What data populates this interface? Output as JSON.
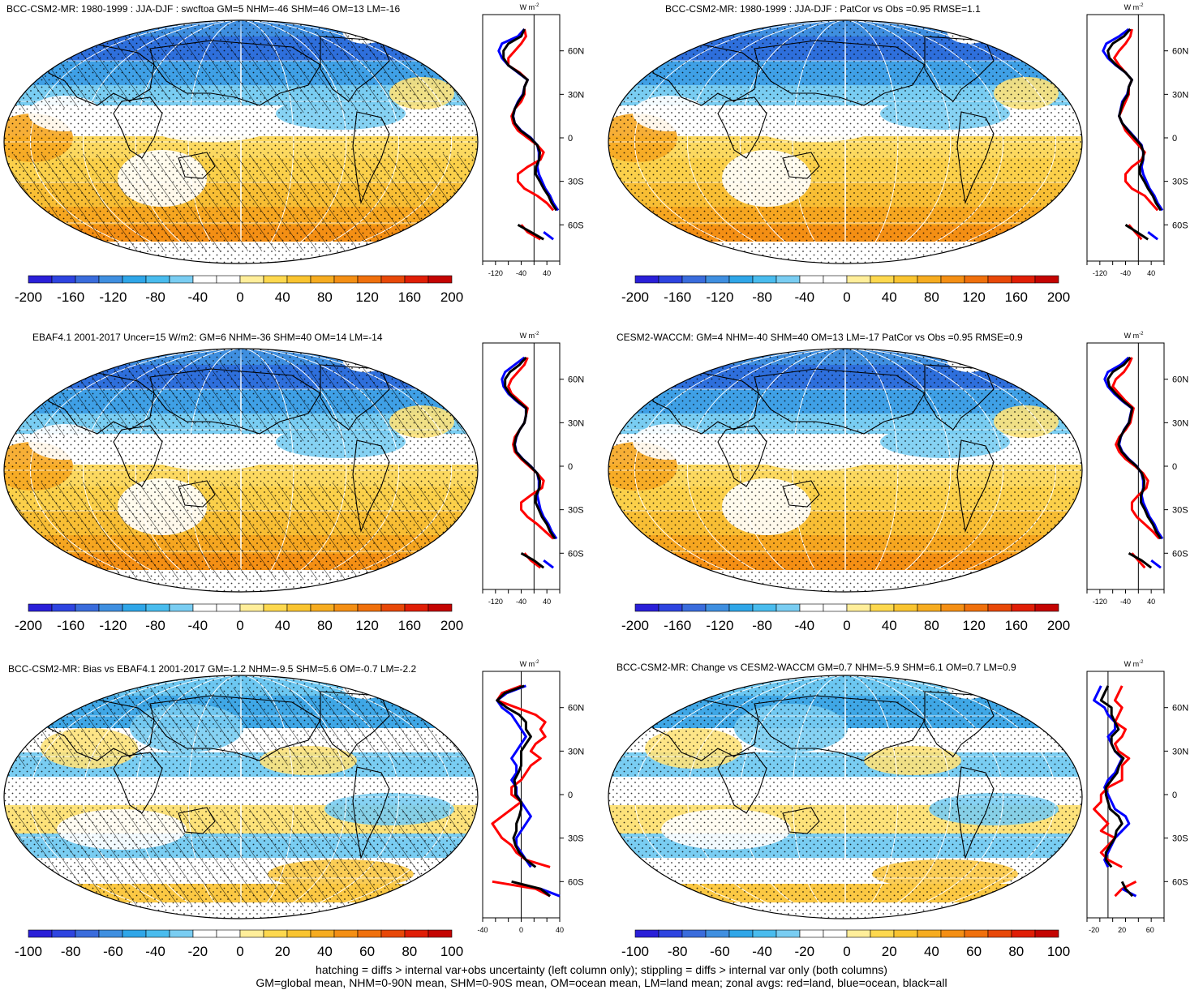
{
  "panels": [
    {
      "title": "BCC-CSM2-MR: 1980-1999 : JJA-DJF : swcftoa GM=5 NHM=-46 SHM=46 OM=13 LM=-16",
      "hatching": true,
      "cbar_ticks": [
        "-200",
        "-160",
        "-120",
        "-80",
        "-40",
        "0",
        "40",
        "80",
        "120",
        "160",
        "200"
      ],
      "zonal_xticks": [
        "-120",
        "-40",
        "40"
      ],
      "zonal_xlim": [
        -160,
        80
      ]
    },
    {
      "title": "BCC-CSM2-MR: 1980-1999 : JJA-DJF : PatCor vs Obs =0.95 RMSE=1.1",
      "hatching": false,
      "cbar_ticks": [
        "-200",
        "-160",
        "-120",
        "-80",
        "-40",
        "0",
        "40",
        "80",
        "120",
        "160",
        "200"
      ],
      "zonal_xticks": [
        "-120",
        "-40",
        "40"
      ],
      "zonal_xlim": [
        -160,
        80
      ]
    },
    {
      "title": "EBAF4.1 2001-2017 Uncer=15 W/m2: GM=6 NHM=-36 SHM=40 OM=14 LM=-14",
      "hatching": true,
      "cbar_ticks": [
        "-200",
        "-160",
        "-120",
        "-80",
        "-40",
        "0",
        "40",
        "80",
        "120",
        "160",
        "200"
      ],
      "zonal_xticks": [
        "-120",
        "-40",
        "40"
      ],
      "zonal_xlim": [
        -160,
        80
      ]
    },
    {
      "title": "CESM2-WACCM: GM=4 NHM=-40 SHM=40 OM=13 LM=-17 PatCor vs Obs =0.95 RMSE=0.9",
      "hatching": false,
      "cbar_ticks": [
        "-200",
        "-160",
        "-120",
        "-80",
        "-40",
        "0",
        "40",
        "80",
        "120",
        "160",
        "200"
      ],
      "zonal_xticks": [
        "-120",
        "-40",
        "40"
      ],
      "zonal_xlim": [
        -160,
        80
      ]
    },
    {
      "title": "BCC-CSM2-MR: Bias vs EBAF4.1 2001-2017 GM=-1.2 NHM=-9.5 SHM=5.6 OM=-0.7 LM=-2.2",
      "hatching": true,
      "cbar_ticks": [
        "-100",
        "-80",
        "-60",
        "-40",
        "-20",
        "0",
        "20",
        "40",
        "60",
        "80",
        "100"
      ],
      "zonal_xticks": [
        "-40",
        "0",
        "40"
      ],
      "zonal_xlim": [
        -40,
        40
      ]
    },
    {
      "title": "BCC-CSM2-MR: Change vs CESM2-WACCM GM=0.7 NHM=-5.9 SHM=6.1 OM=0.7 LM=0.9",
      "hatching": false,
      "cbar_ticks": [
        "-100",
        "-80",
        "-60",
        "-40",
        "-20",
        "0",
        "20",
        "40",
        "60",
        "80",
        "100"
      ],
      "zonal_xticks": [
        "-20",
        "20",
        "60"
      ],
      "zonal_xlim": [
        -30,
        80
      ]
    }
  ],
  "lat_ticks": [
    "60N",
    "30N",
    "0",
    "30S",
    "60S"
  ],
  "units_label": "W m",
  "units_sup": "-2",
  "chart_data": {
    "type": "heatmap",
    "description_map": "Robinson-projection global maps of shortwave cloud forcing seasonal difference (JJA-DJF), with zonal-average profiles",
    "colorbar_colors": [
      "#2a1fd8",
      "#2e44e0",
      "#3a6cdc",
      "#3f8fe0",
      "#2fa6e8",
      "#49bcee",
      "#79cdf2",
      "#ffffff",
      "#ffffff",
      "#ffee9a",
      "#fdd84e",
      "#f9c430",
      "#f6ac20",
      "#f48f14",
      "#f0700c",
      "#e84808",
      "#e01e06",
      "#c40402"
    ],
    "zonal_series": [
      {
        "name": "land",
        "color": "#ff0000"
      },
      {
        "name": "ocean",
        "color": "#0000ff"
      },
      {
        "name": "all",
        "color": "#000000"
      }
    ],
    "zonal_profiles": [
      {
        "lat": [
          75,
          70,
          65,
          60,
          55,
          50,
          45,
          40,
          35,
          30,
          25,
          20,
          15,
          10,
          5,
          0,
          -5,
          -10,
          -15,
          -20,
          -25,
          -30,
          -35,
          -40,
          -45,
          -50,
          -55,
          -60,
          -65,
          -70
        ],
        "land": [
          -30,
          -25,
          -40,
          -60,
          -80,
          -80,
          -45,
          -20,
          -30,
          -30,
          -40,
          -60,
          -70,
          -65,
          -50,
          -20,
          10,
          30,
          20,
          -20,
          -50,
          -50,
          -30,
          10,
          40,
          60,
          null,
          -40,
          -20,
          20
        ],
        "ocean": [
          -30,
          -50,
          -100,
          -110,
          -100,
          -80,
          -50,
          -20,
          -30,
          -35,
          -50,
          -60,
          -65,
          -60,
          -40,
          -10,
          10,
          15,
          15,
          10,
          15,
          25,
          35,
          50,
          60,
          75,
          null,
          null,
          30,
          60
        ],
        "all": [
          -30,
          -40,
          -80,
          -95,
          -95,
          -80,
          -48,
          -20,
          -30,
          -33,
          -48,
          -60,
          -66,
          -60,
          -42,
          -12,
          10,
          18,
          16,
          6,
          5,
          18,
          30,
          45,
          55,
          70,
          null,
          -50,
          -10,
          30
        ]
      },
      {
        "lat": [
          75,
          70,
          65,
          60,
          55,
          50,
          45,
          40,
          35,
          30,
          25,
          20,
          15,
          10,
          5,
          0,
          -5,
          -10,
          -15,
          -20,
          -25,
          -30,
          -35,
          -40,
          -45,
          -50,
          -55,
          -60,
          -65,
          -70
        ],
        "land": [
          -20,
          -25,
          -40,
          -60,
          -75,
          -60,
          -40,
          -20,
          -30,
          -30,
          -40,
          -50,
          -60,
          -50,
          -40,
          -20,
          0,
          20,
          10,
          -20,
          -40,
          -40,
          -20,
          20,
          40,
          60,
          null,
          -30,
          -10,
          10
        ],
        "ocean": [
          -30,
          -60,
          -100,
          -110,
          -95,
          -70,
          -40,
          -20,
          -30,
          -35,
          -50,
          -55,
          -60,
          -50,
          -30,
          -10,
          10,
          15,
          15,
          10,
          15,
          25,
          35,
          50,
          60,
          75,
          null,
          null,
          30,
          60
        ],
        "all": [
          -25,
          -45,
          -80,
          -95,
          -90,
          -68,
          -40,
          -20,
          -30,
          -33,
          -47,
          -54,
          -60,
          -50,
          -32,
          -12,
          8,
          16,
          14,
          5,
          5,
          18,
          30,
          45,
          55,
          70,
          null,
          -40,
          -5,
          30
        ]
      },
      {
        "lat": [
          75,
          70,
          65,
          60,
          55,
          50,
          45,
          40,
          35,
          30,
          25,
          20,
          15,
          10,
          5,
          0,
          -5,
          -10,
          -15,
          -20,
          -25,
          -30,
          -35,
          -40,
          -45,
          -50,
          -55,
          -60,
          -65,
          -70
        ],
        "land": [
          -20,
          -30,
          -50,
          -70,
          -80,
          -70,
          -45,
          -20,
          -25,
          -30,
          -45,
          -60,
          -65,
          -60,
          -40,
          -15,
          10,
          30,
          25,
          -10,
          -40,
          -40,
          -20,
          10,
          35,
          60,
          null,
          -30,
          -10,
          20
        ],
        "ocean": [
          -30,
          -60,
          -90,
          -100,
          -95,
          -80,
          -55,
          -25,
          -25,
          -30,
          -45,
          -55,
          -60,
          -55,
          -35,
          -10,
          10,
          15,
          15,
          10,
          15,
          20,
          30,
          45,
          55,
          70,
          null,
          null,
          30,
          60
        ],
        "all": [
          -25,
          -45,
          -75,
          -90,
          -90,
          -76,
          -52,
          -24,
          -25,
          -30,
          -45,
          -56,
          -61,
          -56,
          -36,
          -11,
          10,
          18,
          17,
          6,
          5,
          15,
          25,
          40,
          50,
          65,
          null,
          -40,
          0,
          30
        ]
      },
      {
        "lat": [
          75,
          70,
          65,
          60,
          55,
          50,
          45,
          40,
          35,
          30,
          25,
          20,
          15,
          10,
          5,
          0,
          -5,
          -10,
          -15,
          -20,
          -25,
          -30,
          -35,
          -40,
          -45,
          -50,
          -55,
          -60,
          -65,
          -70
        ],
        "land": [
          -20,
          -30,
          -45,
          -70,
          -80,
          -60,
          -40,
          -15,
          -20,
          -25,
          -40,
          -60,
          -70,
          -60,
          -40,
          -10,
          15,
          30,
          25,
          0,
          -20,
          -20,
          -5,
          20,
          45,
          65,
          null,
          -20,
          0,
          20
        ],
        "ocean": [
          -30,
          -55,
          -95,
          -105,
          -95,
          -75,
          -50,
          -20,
          -25,
          -30,
          -45,
          -55,
          -60,
          -50,
          -30,
          -5,
          10,
          15,
          15,
          10,
          15,
          25,
          35,
          50,
          60,
          75,
          null,
          null,
          40,
          70
        ],
        "all": [
          -25,
          -45,
          -80,
          -95,
          -90,
          -70,
          -47,
          -19,
          -24,
          -29,
          -44,
          -56,
          -62,
          -52,
          -32,
          -6,
          11,
          18,
          17,
          8,
          8,
          20,
          30,
          45,
          55,
          70,
          null,
          -30,
          10,
          40
        ]
      },
      {
        "lat": [
          75,
          70,
          65,
          60,
          55,
          50,
          45,
          40,
          35,
          30,
          25,
          20,
          15,
          10,
          5,
          0,
          -5,
          -10,
          -15,
          -20,
          -25,
          -30,
          -35,
          -40,
          -45,
          -50,
          -55,
          -60,
          -65,
          -70
        ],
        "land": [
          0,
          -20,
          -25,
          -5,
          15,
          25,
          20,
          25,
          15,
          10,
          20,
          10,
          5,
          0,
          -10,
          -10,
          0,
          -10,
          -20,
          -30,
          -25,
          -20,
          -10,
          -5,
          5,
          30,
          null,
          -30,
          15,
          30
        ],
        "ocean": [
          5,
          -15,
          -25,
          -20,
          -10,
          -5,
          0,
          5,
          0,
          -5,
          -10,
          -5,
          -5,
          -10,
          -5,
          -5,
          0,
          5,
          10,
          5,
          0,
          -5,
          -5,
          0,
          5,
          10,
          null,
          null,
          20,
          40
        ],
        "all": [
          3,
          -17,
          -25,
          -15,
          -2,
          5,
          5,
          10,
          5,
          0,
          0,
          0,
          -3,
          -7,
          -6,
          -6,
          0,
          0,
          -2,
          -5,
          -5,
          -8,
          -6,
          -2,
          5,
          15,
          null,
          -10,
          20,
          30
        ]
      },
      {
        "lat": [
          75,
          70,
          65,
          60,
          55,
          50,
          45,
          40,
          35,
          30,
          25,
          20,
          15,
          10,
          5,
          0,
          -5,
          -10,
          -15,
          -20,
          -25,
          -30,
          -35,
          -40,
          -45,
          -50,
          -55,
          -60,
          -65,
          -70
        ],
        "land": [
          20,
          15,
          10,
          20,
          15,
          10,
          25,
          20,
          10,
          15,
          30,
          20,
          20,
          20,
          0,
          -10,
          -10,
          -20,
          -10,
          0,
          -10,
          10,
          0,
          -10,
          0,
          20,
          null,
          40,
          20,
          10
        ],
        "ocean": [
          -10,
          -15,
          -20,
          -5,
          0,
          10,
          10,
          0,
          5,
          10,
          20,
          15,
          10,
          0,
          -5,
          0,
          5,
          10,
          25,
          30,
          20,
          10,
          5,
          0,
          -5,
          0,
          null,
          null,
          20,
          40
        ],
        "all": [
          0,
          -5,
          -10,
          5,
          5,
          10,
          15,
          5,
          5,
          10,
          22,
          16,
          13,
          5,
          -3,
          -3,
          0,
          3,
          15,
          20,
          12,
          10,
          3,
          -3,
          -3,
          5,
          null,
          20,
          25,
          35
        ]
      }
    ]
  },
  "caption_lines": [
    "hatching = diffs > internal var+obs uncertainty (left column only); stippling = diffs > internal var only (both columns)",
    "GM=global mean, NHM=0-90N mean, SHM=0-90S mean, OM=ocean mean, LM=land mean; zonal avgs: red=land, blue=ocean, black=all"
  ]
}
